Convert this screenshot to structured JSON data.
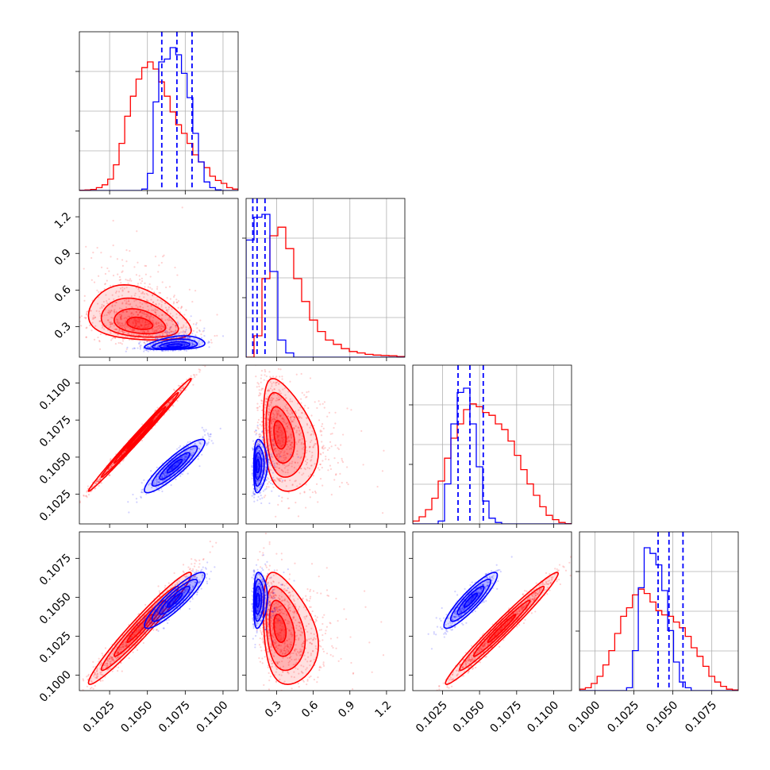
{
  "colors": {
    "red": "#ff0000",
    "blue": "#0000ff",
    "grid": "#b0b0b0"
  },
  "chart_data": {
    "type": "corner",
    "title": "",
    "parameters": [
      {
        "range": [
          0.1005,
          0.111
        ],
        "ticks": [
          0.1025,
          0.105,
          0.1075,
          0.11
        ],
        "tick_labels": [
          "0.1025",
          "0.1050",
          "0.1075",
          "0.1100"
        ]
      },
      {
        "range": [
          0.05,
          1.35
        ],
        "ticks": [
          0.3,
          0.6,
          0.9,
          1.2
        ],
        "tick_labels": [
          "0.3",
          "0.6",
          "0.9",
          "1.2"
        ]
      },
      {
        "range": [
          0.1005,
          0.1112
        ],
        "ticks": [
          0.1025,
          0.105,
          0.1075,
          0.11
        ],
        "tick_labels": [
          "0.1025",
          "0.1050",
          "0.1075",
          "0.1100"
        ]
      },
      {
        "range": [
          0.099,
          0.1092
        ],
        "ticks": [
          0.1,
          0.1025,
          0.105,
          0.1075
        ],
        "tick_labels": [
          "0.1000",
          "0.1025",
          "0.1050",
          "0.1075"
        ]
      }
    ],
    "grid": true,
    "series": [
      {
        "color": "red",
        "mean": [
          0.1045,
          0.3,
          0.1065,
          0.103
        ],
        "sd": [
          0.0017,
          0.2,
          0.0019,
          0.0018
        ],
        "corr": {
          "0-1": -0.3,
          "0-2": 0.995,
          "0-3": 0.97,
          "1-2": -0.3,
          "1-3": -0.3,
          "2-3": 0.98
        },
        "hist": [
          [
            0.002,
            0.004,
            0.008,
            0.02,
            0.04,
            0.08,
            0.18,
            0.33,
            0.52,
            0.66,
            0.78,
            0.86,
            0.9,
            0.85,
            0.76,
            0.66,
            0.55,
            0.46,
            0.4,
            0.33,
            0.25,
            0.2,
            0.16,
            0.1,
            0.07,
            0.05,
            0.02,
            0.01
          ],
          [
            0.0,
            0.15,
            0.55,
            0.85,
            0.91,
            0.76,
            0.55,
            0.39,
            0.26,
            0.18,
            0.12,
            0.09,
            0.06,
            0.04,
            0.03,
            0.02,
            0.015,
            0.012,
            0.01,
            0.005
          ],
          [
            0.02,
            0.05,
            0.1,
            0.18,
            0.3,
            0.46,
            0.6,
            0.7,
            0.8,
            0.84,
            0.82,
            0.78,
            0.76,
            0.7,
            0.66,
            0.58,
            0.48,
            0.38,
            0.28,
            0.2,
            0.12,
            0.06,
            0.03,
            0.01,
            0.002
          ],
          [
            0.01,
            0.02,
            0.05,
            0.1,
            0.18,
            0.28,
            0.4,
            0.52,
            0.58,
            0.67,
            0.71,
            0.68,
            0.62,
            0.56,
            0.53,
            0.52,
            0.48,
            0.44,
            0.38,
            0.3,
            0.24,
            0.17,
            0.1,
            0.06,
            0.03,
            0.01,
            0.005
          ]
        ]
      },
      {
        "color": "blue",
        "mean": [
          0.1068,
          0.14,
          0.1044,
          0.1048
        ],
        "sd": [
          0.001,
          0.05,
          0.0009,
          0.0009
        ],
        "corr": {
          "0-1": 0.3,
          "0-2": 0.9,
          "0-3": 0.9,
          "1-2": 0.1,
          "1-3": 0.1,
          "2-3": 0.9
        },
        "hist": [
          [
            0,
            0,
            0,
            0,
            0,
            0,
            0,
            0,
            0,
            0,
            0,
            0.01,
            0.12,
            0.62,
            0.9,
            0.92,
            1.0,
            0.95,
            0.82,
            0.65,
            0.4,
            0.2,
            0.06,
            0.02,
            0.005,
            0,
            0,
            0
          ],
          [
            0.82,
            0.98,
            1.0,
            0.6,
            0.12,
            0.03,
            0.0,
            0,
            0,
            0,
            0,
            0,
            0,
            0,
            0,
            0,
            0,
            0,
            0,
            0
          ],
          [
            0,
            0,
            0,
            0,
            0.02,
            0.28,
            0.7,
            0.92,
            0.95,
            0.7,
            0.4,
            0.16,
            0.04,
            0.01,
            0,
            0,
            0,
            0,
            0,
            0,
            0,
            0,
            0,
            0,
            0
          ],
          [
            0,
            0,
            0,
            0,
            0,
            0,
            0,
            0,
            0.02,
            0.28,
            0.72,
            1.0,
            0.96,
            0.88,
            0.7,
            0.42,
            0.2,
            0.06,
            0.02,
            0,
            0,
            0,
            0,
            0,
            0,
            0,
            0
          ]
        ],
        "quantiles": [
          [
            0.10595,
            0.10695,
            0.10795
          ],
          [
            0.105,
            0.14,
            0.205
          ],
          [
            0.10355,
            0.10435,
            0.10525
          ],
          [
            0.10405,
            0.10475,
            0.10565
          ]
        ]
      }
    ]
  }
}
